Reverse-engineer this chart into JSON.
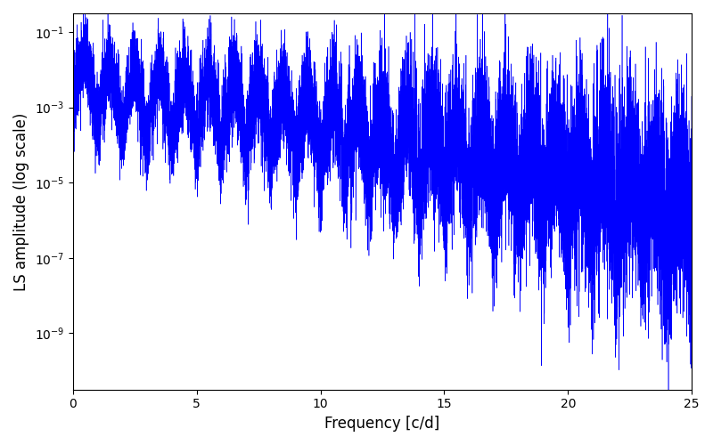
{
  "xlabel": "Frequency [c/d]",
  "ylabel": "LS amplitude (log scale)",
  "xlim": [
    0,
    25
  ],
  "ylim_log_min": -10.5,
  "ylim_log_max": -0.5,
  "line_color": "#0000ff",
  "background_color": "#ffffff",
  "linewidth": 0.4,
  "figsize": [
    8.0,
    5.0
  ],
  "dpi": 100,
  "seed": 123,
  "n_points": 15000,
  "freq_max": 25.0
}
